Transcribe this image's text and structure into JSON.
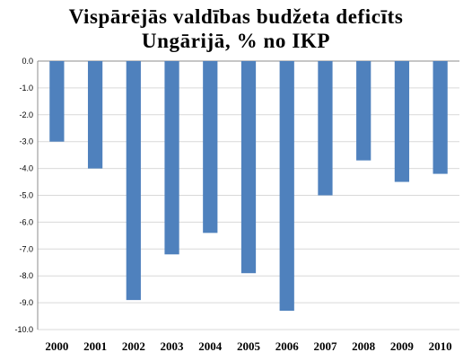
{
  "chart_data": {
    "type": "bar",
    "title_lines": [
      "Vispārējās valdības budžeta deficīts",
      "Ungārijā, % no IKP"
    ],
    "categories": [
      "2000",
      "2001",
      "2002",
      "2003",
      "2004",
      "2005",
      "2006",
      "2007",
      "2008",
      "2009",
      "2010"
    ],
    "series": [
      {
        "values": [
          -3.0,
          -4.0,
          -8.9,
          -7.2,
          -6.4,
          -7.9,
          -9.3,
          -5.0,
          -3.7,
          -4.5,
          -4.2
        ]
      }
    ],
    "ylim": [
      -10.0,
      0.0
    ],
    "yticks": [
      "0.0",
      "-1.0",
      "-2.0",
      "-3.0",
      "-4.0",
      "-5.0",
      "-6.0",
      "-7.0",
      "-8.0",
      "-9.0",
      "-10.0"
    ],
    "grid": true,
    "bar_color": "#4f81bd"
  }
}
